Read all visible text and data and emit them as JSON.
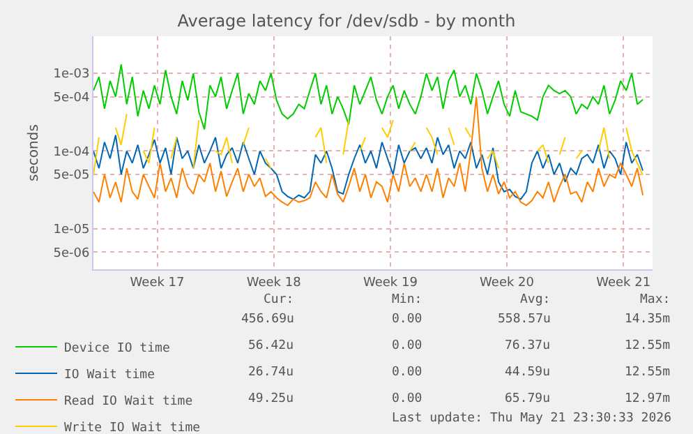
{
  "chart_data": {
    "type": "line",
    "title": "Average latency for /dev/sdb - by month",
    "ylabel": "seconds",
    "log": true,
    "grid": true,
    "legend": "bottom left",
    "line_style": "solid",
    "ylim": [
      3e-06,
      0.003
    ],
    "yticks": [
      {
        "value": 0.001,
        "label": "1e-03"
      },
      {
        "value": 0.0005,
        "label": "5e-04"
      },
      {
        "value": 0.0001,
        "label": "1e-04"
      },
      {
        "value": 5e-05,
        "label": "5e-05"
      },
      {
        "value": 1e-05,
        "label": "1e-05"
      },
      {
        "value": 5e-06,
        "label": "5e-06"
      }
    ],
    "xlim": [
      "2026-04-19T16:00",
      "2026-05-23T06:00"
    ],
    "xticks": [
      {
        "value": "2026-04-23T12:00",
        "label": "Week 17"
      },
      {
        "value": "2026-04-30T12:00",
        "label": "Week 18"
      },
      {
        "value": "2026-05-07T12:00",
        "label": "Week 19"
      },
      {
        "value": "2026-05-14T12:00",
        "label": "Week 20"
      },
      {
        "value": "2026-05-21T12:00",
        "label": "Week 21"
      }
    ],
    "x": [
      "2026-04-19T16:00",
      "2026-04-20T00:00",
      "2026-04-20T08:00",
      "2026-04-20T16:00",
      "2026-04-21T00:00",
      "2026-04-21T08:00",
      "2026-04-21T16:00",
      "2026-04-22T00:00",
      "2026-04-22T08:00",
      "2026-04-22T16:00",
      "2026-04-23T00:00",
      "2026-04-23T08:00",
      "2026-04-23T16:00",
      "2026-04-24T00:00",
      "2026-04-24T08:00",
      "2026-04-24T16:00",
      "2026-04-25T00:00",
      "2026-04-25T08:00",
      "2026-04-25T16:00",
      "2026-04-26T00:00",
      "2026-04-26T08:00",
      "2026-04-26T16:00",
      "2026-04-27T00:00",
      "2026-04-27T08:00",
      "2026-04-27T16:00",
      "2026-04-28T00:00",
      "2026-04-28T08:00",
      "2026-04-28T16:00",
      "2026-04-29T00:00",
      "2026-04-29T08:00",
      "2026-04-29T16:00",
      "2026-04-30T00:00",
      "2026-04-30T08:00",
      "2026-04-30T16:00",
      "2026-05-01T00:00",
      "2026-05-01T08:00",
      "2026-05-01T16:00",
      "2026-05-02T00:00",
      "2026-05-02T08:00",
      "2026-05-02T16:00",
      "2026-05-03T00:00",
      "2026-05-03T08:00",
      "2026-05-03T16:00",
      "2026-05-04T00:00",
      "2026-05-04T08:00",
      "2026-05-04T16:00",
      "2026-05-05T00:00",
      "2026-05-05T08:00",
      "2026-05-05T16:00",
      "2026-05-06T00:00",
      "2026-05-06T08:00",
      "2026-05-06T16:00",
      "2026-05-07T00:00",
      "2026-05-07T08:00",
      "2026-05-07T16:00",
      "2026-05-08T00:00",
      "2026-05-08T08:00",
      "2026-05-08T16:00",
      "2026-05-09T00:00",
      "2026-05-09T08:00",
      "2026-05-09T16:00",
      "2026-05-10T00:00",
      "2026-05-10T08:00",
      "2026-05-10T16:00",
      "2026-05-11T00:00",
      "2026-05-11T08:00",
      "2026-05-11T16:00",
      "2026-05-12T00:00",
      "2026-05-12T08:00",
      "2026-05-12T16:00",
      "2026-05-13T00:00",
      "2026-05-13T08:00",
      "2026-05-13T16:00",
      "2026-05-14T00:00",
      "2026-05-14T08:00",
      "2026-05-14T16:00",
      "2026-05-15T00:00",
      "2026-05-15T08:00",
      "2026-05-15T16:00",
      "2026-05-16T00:00",
      "2026-05-16T08:00",
      "2026-05-16T16:00",
      "2026-05-17T00:00",
      "2026-05-17T08:00",
      "2026-05-17T16:00",
      "2026-05-18T00:00",
      "2026-05-18T08:00",
      "2026-05-18T16:00",
      "2026-05-19T00:00",
      "2026-05-19T08:00",
      "2026-05-19T16:00",
      "2026-05-20T00:00",
      "2026-05-20T08:00",
      "2026-05-20T16:00",
      "2026-05-21T00:00",
      "2026-05-21T08:00",
      "2026-05-21T16:00",
      "2026-05-22T00:00",
      "2026-05-22T08:00",
      "2026-05-22T16:00"
    ],
    "series": [
      {
        "name": "Device IO time",
        "color": "#00cc00",
        "values": [
          0.0006,
          0.0009,
          0.00035,
          0.0008,
          0.0005,
          0.0013,
          0.0004,
          0.0009,
          0.00028,
          0.0006,
          0.00035,
          0.0007,
          0.0004,
          0.0011,
          0.0005,
          0.0003,
          0.0008,
          0.00045,
          0.001,
          0.00032,
          0.00019,
          0.0007,
          0.0005,
          0.0009,
          0.00035,
          0.0006,
          0.001,
          0.0003,
          0.00055,
          0.0004,
          0.0008,
          0.0006,
          0.001,
          0.00045,
          0.0003,
          0.00026,
          0.0003,
          0.0004,
          0.00035,
          0.0006,
          0.001,
          0.0004,
          0.0007,
          0.0003,
          0.0005,
          0.00035,
          0.00022,
          0.0007,
          0.0004,
          0.0006,
          0.0009,
          0.00045,
          0.0003,
          0.0005,
          0.0007,
          0.00035,
          0.0006,
          0.0004,
          0.0003,
          0.0005,
          0.001,
          0.0006,
          0.0009,
          0.00035,
          0.0008,
          0.0011,
          0.0005,
          0.0007,
          0.0004,
          0.001,
          0.0006,
          0.0003,
          0.0005,
          0.0008,
          0.0004,
          0.00028,
          0.0006,
          0.00032,
          0.0003,
          0.00028,
          0.00025,
          0.0005,
          0.0007,
          0.0006,
          0.00055,
          0.0006,
          0.0005,
          0.0003,
          0.0004,
          0.00035,
          0.0005,
          0.0004,
          0.0007,
          0.0003,
          0.00045,
          0.0008,
          0.0006,
          0.001,
          0.0004,
          0.00046
        ]
      },
      {
        "name": "IO Wait time",
        "color": "#0066b3",
        "values": [
          0.0001,
          6e-05,
          0.00013,
          8e-05,
          0.00016,
          5e-05,
          0.0001,
          7e-05,
          0.00012,
          6e-05,
          9e-05,
          0.00014,
          7e-05,
          0.00011,
          5e-05,
          0.00015,
          8e-05,
          0.0001,
          6e-05,
          0.00012,
          7e-05,
          0.0001,
          0.00015,
          6e-05,
          9e-05,
          0.00011,
          7e-05,
          0.00013,
          8e-05,
          5e-05,
          0.0001,
          7e-05,
          6e-05,
          5e-05,
          3e-05,
          2.6e-05,
          2.4e-05,
          2.7e-05,
          2.5e-05,
          3e-05,
          9e-05,
          7e-05,
          0.0001,
          6e-05,
          3e-05,
          2.8e-05,
          5e-05,
          8e-05,
          0.00012,
          7e-05,
          0.0001,
          6e-05,
          0.00013,
          8e-05,
          5e-05,
          0.00012,
          7e-05,
          0.0001,
          0.00011,
          8e-05,
          0.00011,
          7e-05,
          0.00015,
          9e-05,
          0.00012,
          6e-05,
          0.0001,
          8e-05,
          0.00013,
          6e-05,
          9e-05,
          5e-05,
          0.00011,
          4e-05,
          3e-05,
          3.2e-05,
          2.6e-05,
          2.4e-05,
          3e-05,
          7e-05,
          0.0001,
          6e-05,
          9e-05,
          5e-05,
          7e-05,
          4e-05,
          6e-05,
          5e-05,
          8e-05,
          9e-05,
          7e-05,
          0.00012,
          6e-05,
          0.0001,
          8e-05,
          5e-05,
          0.00013,
          7e-05,
          9e-05,
          5.6e-05
        ]
      },
      {
        "name": "Read IO Wait time",
        "color": "#ff8000",
        "values": [
          3e-05,
          2.2e-05,
          5e-05,
          2.5e-05,
          4e-05,
          2.2e-05,
          6e-05,
          3e-05,
          2.4e-05,
          5e-05,
          3.5e-05,
          2.5e-05,
          7e-05,
          3e-05,
          4.5e-05,
          2.5e-05,
          6e-05,
          3.5e-05,
          2.8e-05,
          5e-05,
          4e-05,
          7e-05,
          3e-05,
          5.5e-05,
          2.6e-05,
          4e-05,
          6e-05,
          3e-05,
          5e-05,
          3.5e-05,
          4.5e-05,
          2.6e-05,
          3e-05,
          2.5e-05,
          2.2e-05,
          2e-05,
          2.4e-05,
          2.2e-05,
          2.3e-05,
          2.5e-05,
          4e-05,
          3e-05,
          2.5e-05,
          5e-05,
          2.8e-05,
          2.2e-05,
          3.5e-05,
          6e-05,
          3e-05,
          5e-05,
          2.5e-05,
          4e-05,
          3.5e-05,
          2.2e-05,
          5e-05,
          3e-05,
          7e-05,
          3.5e-05,
          4.5e-05,
          3e-05,
          5e-05,
          3e-05,
          6e-05,
          2.5e-05,
          4.5e-05,
          3.5e-05,
          7e-05,
          3e-05,
          0.0001,
          0.0005,
          6e-05,
          3e-05,
          5e-05,
          2.8e-05,
          4e-05,
          2.5e-05,
          3e-05,
          2.2e-05,
          2e-05,
          2.3e-05,
          3e-05,
          2.5e-05,
          4e-05,
          2.2e-05,
          3.5e-05,
          5e-05,
          2.8e-05,
          3e-05,
          2.2e-05,
          4e-05,
          3e-05,
          6e-05,
          3.5e-05,
          5e-05,
          4.5e-05,
          7e-05,
          5e-05,
          3.5e-05,
          6e-05,
          2.7e-05
        ]
      },
      {
        "name": "Write IO Wait time",
        "color": "#ffcc00",
        "values": [
          5e-05,
          0.00015,
          null,
          null,
          0.0002,
          0.00012,
          0.0003,
          null,
          null,
          0.0001,
          7e-05,
          0.0002,
          null,
          null,
          8e-05,
          0.00015,
          null,
          null,
          6e-05,
          0.00025,
          null,
          null,
          0.0001,
          9e-05,
          0.00015,
          7e-05,
          null,
          0.00012,
          0.0002,
          null,
          null,
          8e-05,
          6e-05,
          null,
          null,
          null,
          null,
          null,
          null,
          null,
          0.00015,
          0.0002,
          7e-05,
          null,
          null,
          9e-05,
          0.00025,
          null,
          0.0001,
          0.00015,
          null,
          null,
          0.0002,
          0.00015,
          0.00025,
          null,
          null,
          0.0001,
          0.00013,
          null,
          0.0002,
          0.00015,
          9e-05,
          null,
          0.0002,
          0.00012,
          null,
          0.0002,
          0.00015,
          null,
          null,
          8e-05,
          0.0001,
          6e-05,
          null,
          null,
          null,
          null,
          null,
          null,
          0.0001,
          0.00012,
          7e-05,
          null,
          9e-05,
          0.00015,
          null,
          8e-05,
          0.0001,
          null,
          null,
          0.0001,
          0.0002,
          8e-05,
          null,
          null,
          0.0002,
          0.0001,
          7e-05,
          4.9e-05
        ]
      }
    ],
    "annotations": [
      "Cur:",
      "Min:",
      "Avg:",
      "Max:",
      "456.69u",
      "0.00",
      "558.57u",
      "14.35m",
      "56.42u",
      "0.00",
      "76.37u",
      "12.55m",
      "26.74u",
      "0.00",
      "44.59u",
      "12.55m",
      "49.25u",
      "0.00",
      "65.79u",
      "12.97m",
      "Last update: Thu May 21 23:30:33 2026"
    ]
  }
}
